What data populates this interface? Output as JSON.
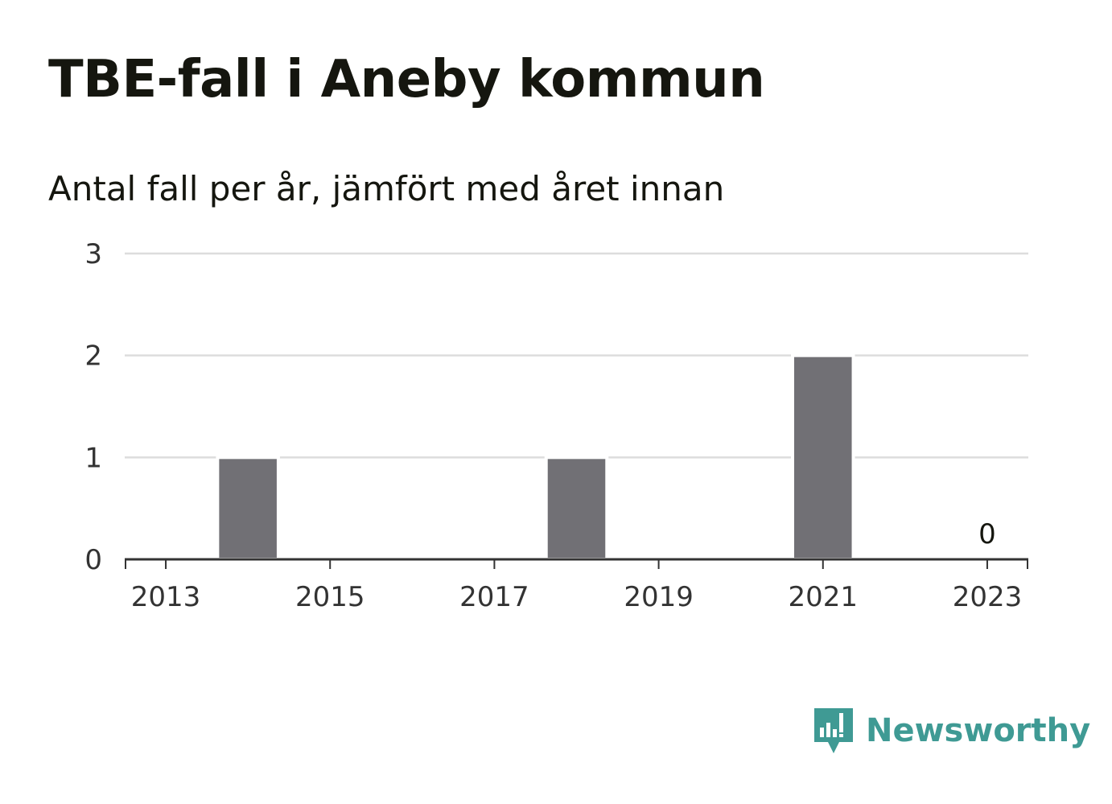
{
  "header": {
    "title": "TBE-fall i Aneby kommun",
    "subtitle": "Antal fall per år, jämfört med året innan"
  },
  "brand": {
    "name": "Newsworthy",
    "icon": "newsworthy-logo-icon",
    "color": "#3f9a94"
  },
  "chart_data": {
    "type": "bar",
    "x": [
      2013,
      2014,
      2015,
      2016,
      2017,
      2018,
      2019,
      2020,
      2021,
      2022,
      2023
    ],
    "values": [
      0,
      1,
      0,
      0,
      0,
      1,
      0,
      0,
      2,
      0,
      0
    ],
    "x_tick_labels": [
      "2013",
      "2015",
      "2017",
      "2019",
      "2021",
      "2023"
    ],
    "y_tick_labels": [
      "0",
      "1",
      "2",
      "3"
    ],
    "ylim": [
      0,
      3
    ],
    "grid": true,
    "legend": "none",
    "annotations": [
      {
        "x": 2023,
        "text": "0"
      }
    ],
    "bar_color": "#717075",
    "grid_color": "#dddddd",
    "axis_color": "#333333"
  }
}
